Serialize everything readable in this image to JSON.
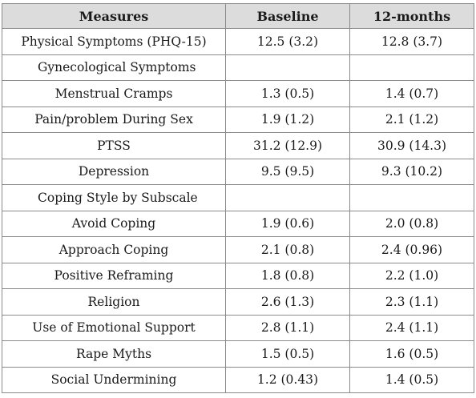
{
  "table": {
    "headers": [
      "Measures",
      "Baseline",
      "12-months"
    ],
    "rows": [
      {
        "label": "Physical Symptoms (PHQ-15)",
        "baseline": "12.5 (3.2)",
        "months12": "12.8 (3.7)"
      },
      {
        "label": "Gynecological Symptoms",
        "baseline": "",
        "months12": ""
      },
      {
        "label": "Menstrual Cramps",
        "baseline": "1.3 (0.5)",
        "months12": "1.4 (0.7)"
      },
      {
        "label": "Pain/problem During Sex",
        "baseline": "1.9 (1.2)",
        "months12": "2.1 (1.2)"
      },
      {
        "label": "PTSS",
        "baseline": "31.2 (12.9)",
        "months12": "30.9 (14.3)"
      },
      {
        "label": "Depression",
        "baseline": "9.5 (9.5)",
        "months12": "9.3 (10.2)"
      },
      {
        "label": "Coping Style by Subscale",
        "baseline": "",
        "months12": ""
      },
      {
        "label": "Avoid Coping",
        "baseline": "1.9 (0.6)",
        "months12": "2.0 (0.8)"
      },
      {
        "label": "Approach Coping",
        "baseline": "2.1 (0.8)",
        "months12": "2.4 (0.96)"
      },
      {
        "label": "Positive Reframing",
        "baseline": "1.8 (0.8)",
        "months12": "2.2 (1.0)"
      },
      {
        "label": "Religion",
        "baseline": "2.6 (1.3)",
        "months12": "2.3 (1.1)"
      },
      {
        "label": "Use of Emotional Support",
        "baseline": "2.8 (1.1)",
        "months12": "2.4 (1.1)"
      },
      {
        "label": "Rape Myths",
        "baseline": "1.5 (0.5)",
        "months12": "1.6 (0.5)"
      },
      {
        "label": "Social Undermining",
        "baseline": "1.2 (0.43)",
        "months12": "1.4 (0.5)"
      }
    ]
  }
}
